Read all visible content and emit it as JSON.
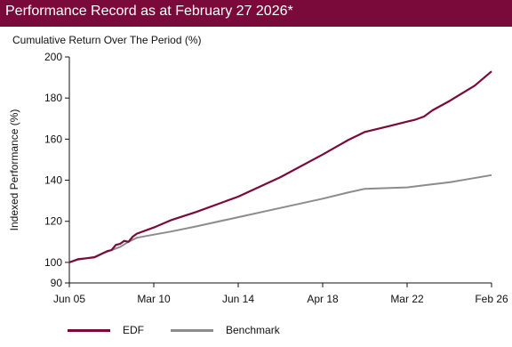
{
  "header": {
    "title": "Performance Record as at February 27 2026*"
  },
  "colors": {
    "header_bg": "#7a0a3a",
    "edf": "#7a0a3a",
    "benchmark": "#8c8c8c"
  },
  "chart_data": {
    "type": "line",
    "title": "Cumulative Return Over The Period (%)",
    "ylabel": "Indexed Performance (%)",
    "xlabel": "",
    "ylim": [
      90,
      200
    ],
    "yticks": [
      90,
      100,
      120,
      140,
      160,
      180,
      200
    ],
    "xticks": [
      "Jun 05",
      "Mar 10",
      "Jun 14",
      "Apr 18",
      "Mar 22",
      "Feb 26"
    ],
    "xlim": [
      0,
      5
    ],
    "grid": false,
    "legend_position": "bottom-left",
    "series": [
      {
        "name": "EDF",
        "x": [
          0,
          0.1,
          0.2,
          0.3,
          0.4,
          0.45,
          0.5,
          0.55,
          0.6,
          0.65,
          0.7,
          0.75,
          0.8,
          1.0,
          1.2,
          1.5,
          2.0,
          2.5,
          3.0,
          3.3,
          3.5,
          3.8,
          4.0,
          4.1,
          4.2,
          4.3,
          4.5,
          4.8,
          5.0
        ],
        "values": [
          100,
          101.5,
          102,
          102.5,
          104.5,
          105.5,
          106,
          108.5,
          109,
          110.5,
          110,
          112.5,
          114,
          117,
          120.5,
          124.5,
          132,
          141.5,
          152.5,
          159.5,
          163.5,
          166.5,
          168.5,
          169.5,
          171,
          174,
          178.5,
          186,
          193
        ]
      },
      {
        "name": "Benchmark",
        "x": [
          0,
          0.1,
          0.2,
          0.3,
          0.4,
          0.5,
          0.6,
          0.7,
          0.8,
          1.0,
          1.2,
          1.5,
          2.0,
          2.5,
          3.0,
          3.3,
          3.5,
          3.8,
          4.0,
          4.2,
          4.5,
          5.0
        ],
        "values": [
          100,
          101.3,
          102,
          102.7,
          104.5,
          106,
          107.5,
          110,
          112,
          113.5,
          115,
          117.5,
          122,
          126.5,
          131,
          134,
          135.8,
          136.2,
          136.5,
          137.5,
          139,
          142.5
        ]
      }
    ]
  }
}
